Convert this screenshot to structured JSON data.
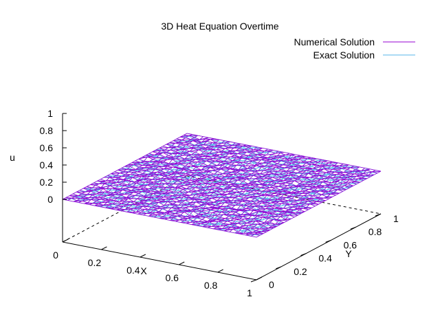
{
  "chart_data": {
    "type": "surface3d",
    "title": "3D Heat Equation Overtime",
    "xlabel": "X",
    "ylabel": "Y",
    "zlabel": "u",
    "xlim": [
      0,
      1
    ],
    "ylim": [
      0,
      1
    ],
    "zlim": [
      0,
      1
    ],
    "x_ticks": [
      "0",
      "0.2",
      "0.4",
      "0.6",
      "0.8",
      "1"
    ],
    "y_ticks": [
      "0",
      "0.2",
      "0.4",
      "0.6",
      "0.8",
      "1"
    ],
    "z_ticks": [
      "0",
      "0.2",
      "0.4",
      "0.6",
      "0.8",
      "1"
    ],
    "legend_position": "top-right",
    "series": [
      {
        "name": "Numerical Solution",
        "color": "#9400d3",
        "surface_value": 0
      },
      {
        "name": "Exact Solution",
        "color": "#56b4e9",
        "surface_value": 0
      }
    ]
  }
}
